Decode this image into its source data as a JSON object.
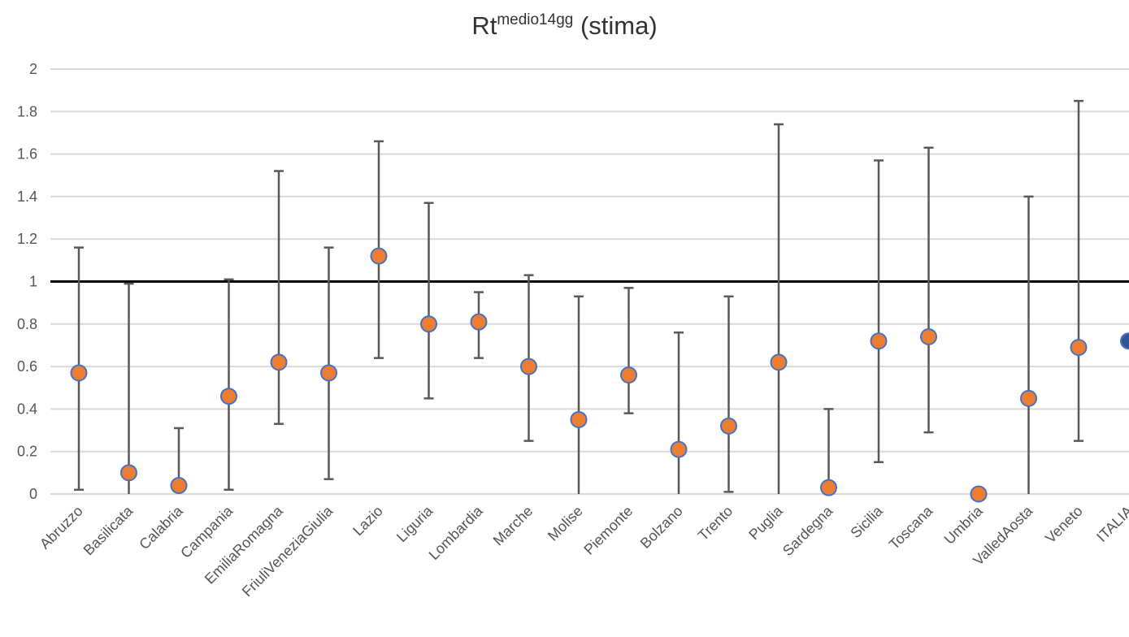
{
  "chart_data": {
    "type": "scatter",
    "title": "Rt",
    "title_superscript": "medio14gg",
    "title_suffix": " (stima)",
    "ylim": [
      0,
      2
    ],
    "y_ticks": [
      0,
      0.2,
      0.4,
      0.6,
      0.8,
      1,
      1.2,
      1.4,
      1.6,
      1.8,
      2
    ],
    "y_tick_labels": [
      "0",
      "0.2",
      "0.4",
      "0.6",
      "0.8",
      "1",
      "1.2",
      "1.4",
      "1.6",
      "1.8",
      "2"
    ],
    "grid": true,
    "reference_line": 1,
    "categories": [
      "Abruzzo",
      "Basilicata",
      "Calabria",
      "Campania",
      "EmiliaRomagna",
      "FriuliVeneziaGiulia",
      "Lazio",
      "Liguria",
      "Lombardia",
      "Marche",
      "Molise",
      "Piemonte",
      "Bolzano",
      "Trento",
      "Puglia",
      "Sardegna",
      "Sicilia",
      "Toscana",
      "Umbria",
      "ValledAosta",
      "Veneto",
      "ITALIA"
    ],
    "values": [
      0.57,
      0.1,
      0.04,
      0.46,
      0.62,
      0.57,
      1.12,
      0.8,
      0.81,
      0.6,
      0.35,
      0.56,
      0.21,
      0.32,
      0.62,
      0.03,
      0.72,
      0.74,
      0.0,
      0.45,
      0.69,
      0.72
    ],
    "lower": [
      0.02,
      0.0,
      0.0,
      0.02,
      0.33,
      0.07,
      0.64,
      0.45,
      0.64,
      0.25,
      0.0,
      0.38,
      0.0,
      0.01,
      0.0,
      0.0,
      0.15,
      0.29,
      null,
      0.0,
      0.25,
      null
    ],
    "upper": [
      1.16,
      0.99,
      0.31,
      1.01,
      1.52,
      1.16,
      1.66,
      1.37,
      0.95,
      1.03,
      0.93,
      0.97,
      0.76,
      0.93,
      1.74,
      0.4,
      1.57,
      1.63,
      null,
      1.4,
      1.85,
      null
    ],
    "colors": {
      "point": "#ED7D31",
      "point_border": "#4472C4",
      "italia_point": "#2F5597",
      "error_bar": "#595959",
      "reference_line": "#000000",
      "grid": "#D9D9D9"
    }
  }
}
